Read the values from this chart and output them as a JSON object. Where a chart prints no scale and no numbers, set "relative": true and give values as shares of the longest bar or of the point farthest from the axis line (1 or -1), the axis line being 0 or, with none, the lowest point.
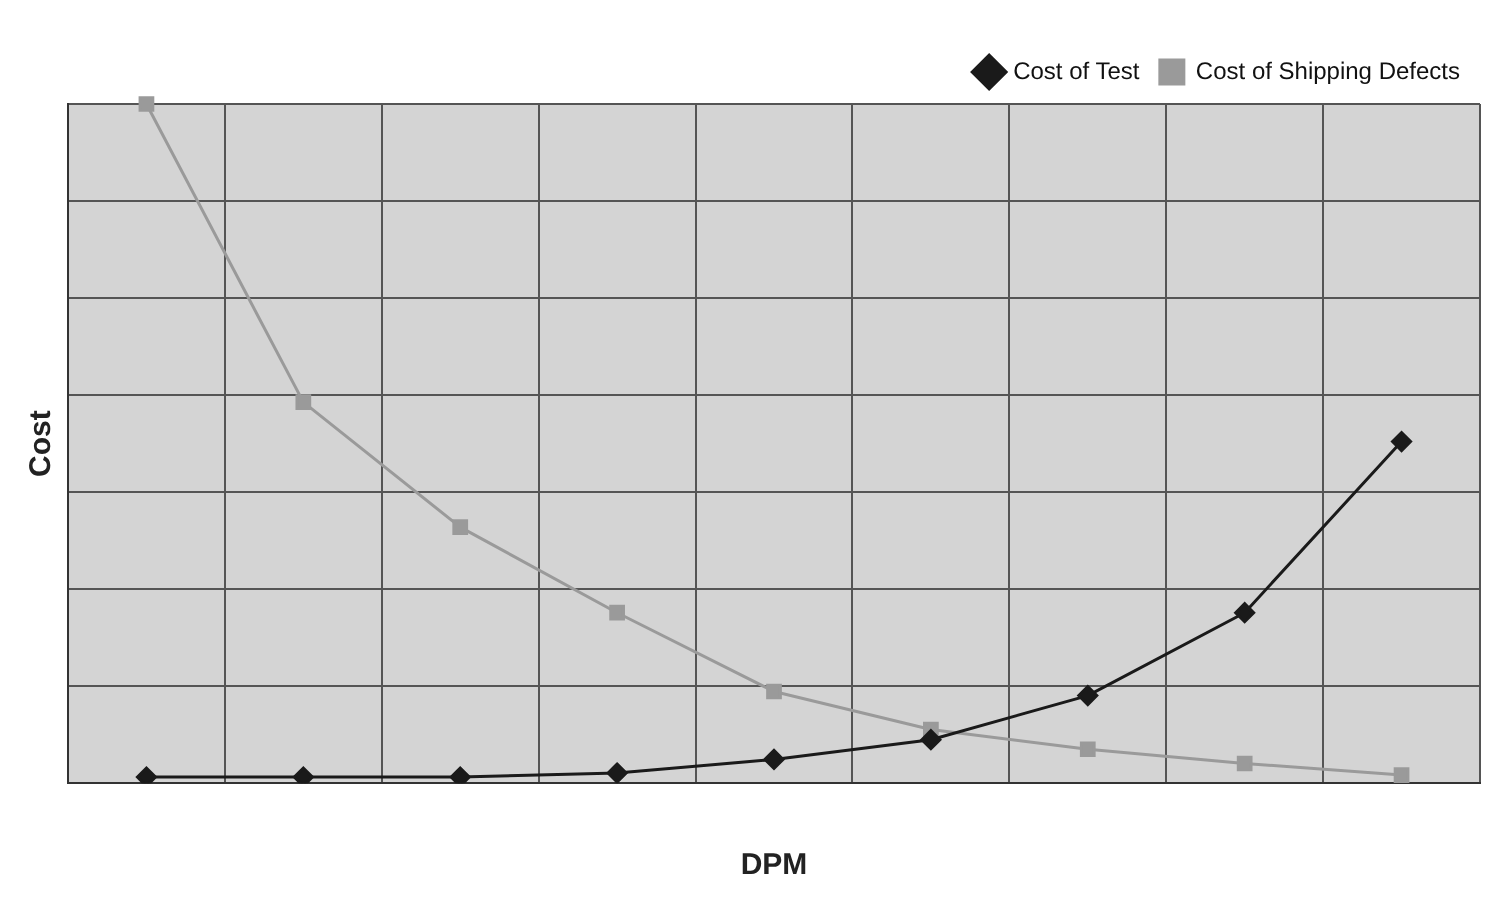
{
  "chart_data": {
    "type": "line",
    "relative": true,
    "xlabel": "DPM",
    "ylabel": "Cost",
    "categories": [
      null,
      null,
      null,
      null,
      null,
      null,
      null,
      null,
      null
    ],
    "series": [
      {
        "name": "Cost of Test",
        "color": "#1a1a1a",
        "marker": "diamond",
        "values": [
          0.009,
          0.009,
          0.009,
          0.015,
          0.035,
          0.064,
          0.129,
          0.251,
          0.503
        ]
      },
      {
        "name": "Cost of Shipping Defects",
        "color": "#9a9a9a",
        "marker": "square",
        "values": [
          1,
          0.561,
          0.377,
          0.251,
          0.135,
          0.079,
          0.05,
          0.029,
          0.012
        ]
      }
    ],
    "grid": true,
    "legend": "top right"
  }
}
